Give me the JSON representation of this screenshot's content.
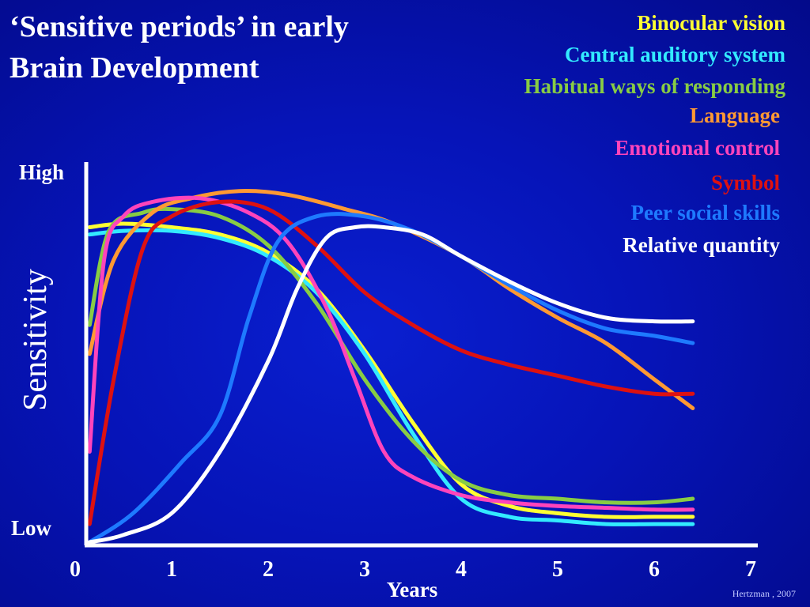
{
  "title_line1": "‘Sensitive periods’ in early",
  "title_line2": "Brain Development",
  "credit": "Hertzman , 2007",
  "chart_data": {
    "type": "line",
    "xlabel": "Years",
    "ylabel": "Sensitivity",
    "y_high_label": "High",
    "y_low_label": "Low",
    "x_ticks": [
      "0",
      "1",
      "2",
      "3",
      "4",
      "5",
      "6",
      "7"
    ],
    "xlim": [
      0,
      7
    ],
    "ylim": [
      0,
      1
    ],
    "grid": false,
    "legend_position": "top-right",
    "series": [
      {
        "name": "Binocular vision",
        "color": "#ffff33",
        "points": [
          [
            0.15,
            0.87
          ],
          [
            0.5,
            0.88
          ],
          [
            1,
            0.87
          ],
          [
            1.5,
            0.85
          ],
          [
            2,
            0.8
          ],
          [
            2.5,
            0.7
          ],
          [
            3,
            0.53
          ],
          [
            3.5,
            0.33
          ],
          [
            4,
            0.16
          ],
          [
            4.5,
            0.1
          ],
          [
            5,
            0.08
          ],
          [
            5.5,
            0.07
          ],
          [
            6,
            0.07
          ],
          [
            6.4,
            0.07
          ]
        ]
      },
      {
        "name": "Central auditory system",
        "color": "#33eaff",
        "points": [
          [
            0.15,
            0.85
          ],
          [
            0.5,
            0.86
          ],
          [
            1,
            0.86
          ],
          [
            1.5,
            0.84
          ],
          [
            2,
            0.79
          ],
          [
            2.5,
            0.69
          ],
          [
            3,
            0.52
          ],
          [
            3.5,
            0.3
          ],
          [
            4,
            0.12
          ],
          [
            4.5,
            0.07
          ],
          [
            5,
            0.06
          ],
          [
            5.5,
            0.05
          ],
          [
            6,
            0.05
          ],
          [
            6.4,
            0.05
          ]
        ]
      },
      {
        "name": "Habitual ways of responding",
        "color": "#88cc44",
        "points": [
          [
            0.15,
            0.6
          ],
          [
            0.35,
            0.86
          ],
          [
            0.7,
            0.91
          ],
          [
            1,
            0.92
          ],
          [
            1.5,
            0.9
          ],
          [
            2,
            0.82
          ],
          [
            2.5,
            0.66
          ],
          [
            3,
            0.45
          ],
          [
            3.5,
            0.28
          ],
          [
            4,
            0.17
          ],
          [
            4.5,
            0.13
          ],
          [
            5,
            0.12
          ],
          [
            5.5,
            0.11
          ],
          [
            6,
            0.11
          ],
          [
            6.4,
            0.12
          ]
        ]
      },
      {
        "name": "Language",
        "color": "#ff9933",
        "points": [
          [
            0.15,
            0.52
          ],
          [
            0.4,
            0.78
          ],
          [
            0.8,
            0.91
          ],
          [
            1.2,
            0.95
          ],
          [
            1.7,
            0.97
          ],
          [
            2.2,
            0.96
          ],
          [
            2.8,
            0.92
          ],
          [
            3.3,
            0.88
          ],
          [
            4,
            0.79
          ],
          [
            4.5,
            0.7
          ],
          [
            5,
            0.62
          ],
          [
            5.5,
            0.55
          ],
          [
            6,
            0.45
          ],
          [
            6.4,
            0.37
          ]
        ]
      },
      {
        "name": "Emotional control",
        "color": "#ff44bb",
        "points": [
          [
            0.15,
            0.25
          ],
          [
            0.3,
            0.78
          ],
          [
            0.5,
            0.9
          ],
          [
            0.8,
            0.94
          ],
          [
            1.3,
            0.95
          ],
          [
            1.8,
            0.91
          ],
          [
            2.2,
            0.83
          ],
          [
            2.6,
            0.65
          ],
          [
            2.9,
            0.45
          ],
          [
            3.2,
            0.25
          ],
          [
            3.5,
            0.18
          ],
          [
            4,
            0.13
          ],
          [
            4.5,
            0.11
          ],
          [
            5,
            0.1
          ],
          [
            5.5,
            0.095
          ],
          [
            6,
            0.09
          ],
          [
            6.4,
            0.09
          ]
        ]
      },
      {
        "name": "Symbol",
        "color": "#dd1111",
        "points": [
          [
            0.15,
            0.05
          ],
          [
            0.4,
            0.45
          ],
          [
            0.7,
            0.81
          ],
          [
            1,
            0.9
          ],
          [
            1.5,
            0.94
          ],
          [
            2,
            0.92
          ],
          [
            2.5,
            0.82
          ],
          [
            3,
            0.69
          ],
          [
            3.5,
            0.6
          ],
          [
            4,
            0.53
          ],
          [
            4.5,
            0.49
          ],
          [
            5,
            0.46
          ],
          [
            5.5,
            0.43
          ],
          [
            6,
            0.41
          ],
          [
            6.4,
            0.41
          ]
        ]
      },
      {
        "name": "Peer social skills",
        "color": "#1e7aff",
        "points": [
          [
            0.15,
            0.0
          ],
          [
            0.6,
            0.08
          ],
          [
            1.1,
            0.22
          ],
          [
            1.5,
            0.35
          ],
          [
            1.8,
            0.62
          ],
          [
            2.1,
            0.83
          ],
          [
            2.5,
            0.9
          ],
          [
            3,
            0.9
          ],
          [
            3.5,
            0.86
          ],
          [
            4,
            0.79
          ],
          [
            4.5,
            0.71
          ],
          [
            5,
            0.64
          ],
          [
            5.5,
            0.59
          ],
          [
            6,
            0.57
          ],
          [
            6.4,
            0.55
          ]
        ]
      },
      {
        "name": "Relative quantity",
        "color": "#ffffff",
        "points": [
          [
            0.15,
            0.0
          ],
          [
            0.5,
            0.02
          ],
          [
            1,
            0.08
          ],
          [
            1.5,
            0.25
          ],
          [
            2,
            0.5
          ],
          [
            2.3,
            0.7
          ],
          [
            2.6,
            0.84
          ],
          [
            2.9,
            0.87
          ],
          [
            3.2,
            0.87
          ],
          [
            3.6,
            0.85
          ],
          [
            4,
            0.79
          ],
          [
            4.5,
            0.72
          ],
          [
            5,
            0.66
          ],
          [
            5.5,
            0.62
          ],
          [
            6,
            0.61
          ],
          [
            6.4,
            0.61
          ]
        ]
      }
    ]
  }
}
